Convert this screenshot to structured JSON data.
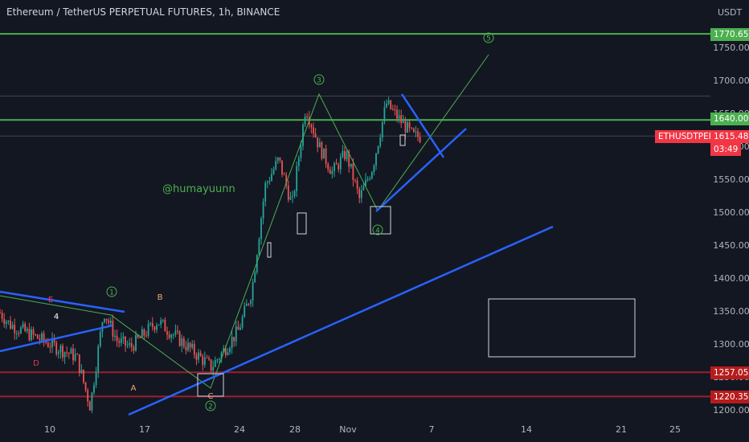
{
  "header": {
    "title": "Ethereum / TetherUS PERPETUAL FUTURES, 1h, BINANCE",
    "currency": "USDT"
  },
  "signature": "@humayuunn",
  "price_tags": {
    "symbol": "ETHUSDTPERP",
    "last_price": "1615.48",
    "countdown": "03:49",
    "level_top": "1770.65",
    "level_resistance": "1640.00",
    "level_support_1": "1257.05",
    "level_support_2": "1220.35"
  },
  "colors": {
    "background": "#131722",
    "candle_up": "#26a69a",
    "candle_down": "#ef5350",
    "trendline": "#2962ff",
    "green_level": "#4caf50",
    "red_level": "#b71c1c",
    "price_tag": "#f23645",
    "wave_label": "#4caf50",
    "abc_label": "#f5a86b",
    "de_label": "#f23645"
  },
  "chart_data": {
    "type": "candlestick",
    "y_axis": {
      "min": 1200,
      "max": 1800,
      "ticks": [
        1200,
        1250,
        1300,
        1350,
        1400,
        1450,
        1500,
        1550,
        1600,
        1650,
        1700,
        1750
      ]
    },
    "x_axis": {
      "tick_labels": [
        "10",
        "17",
        "24",
        "28",
        "Nov",
        "7",
        "14",
        "21",
        "25"
      ]
    },
    "price_path": [
      {
        "date": "Oct 5",
        "price": 1380
      },
      {
        "date": "Oct 7",
        "price": 1330
      },
      {
        "date": "Oct 9",
        "price": 1310
      },
      {
        "date": "Oct 12",
        "price": 1280
      },
      {
        "date": "Oct 13",
        "price": 1205
      },
      {
        "date": "Oct 14",
        "price": 1350
      },
      {
        "date": "Oct 15",
        "price": 1305
      },
      {
        "date": "Oct 16",
        "price": 1295
      },
      {
        "date": "Oct 18",
        "price": 1335
      },
      {
        "date": "Oct 20",
        "price": 1300
      },
      {
        "date": "Oct 22",
        "price": 1265
      },
      {
        "date": "Oct 24",
        "price": 1320
      },
      {
        "date": "Oct 25",
        "price": 1380
      },
      {
        "date": "Oct 26",
        "price": 1540
      },
      {
        "date": "Oct 27",
        "price": 1580
      },
      {
        "date": "Oct 28",
        "price": 1510
      },
      {
        "date": "Oct 29",
        "price": 1660
      },
      {
        "date": "Oct 30",
        "price": 1600
      },
      {
        "date": "Oct 31",
        "price": 1560
      },
      {
        "date": "Nov 1",
        "price": 1590
      },
      {
        "date": "Nov 2",
        "price": 1520
      },
      {
        "date": "Nov 3",
        "price": 1570
      },
      {
        "date": "Nov 4",
        "price": 1665
      },
      {
        "date": "Nov 5",
        "price": 1640
      },
      {
        "date": "Nov 6",
        "price": 1615
      }
    ],
    "horizontal_levels": [
      {
        "price": 1770.65,
        "color": "green"
      },
      {
        "price": 1676,
        "color": "gray"
      },
      {
        "price": 1640.0,
        "color": "green"
      },
      {
        "price": 1615.48,
        "color": "gray"
      },
      {
        "price": 1257.05,
        "color": "red"
      },
      {
        "price": 1220.35,
        "color": "red"
      }
    ],
    "wave_labels": [
      "1",
      "2",
      "3",
      "4",
      "5"
    ],
    "correction_labels": [
      "A",
      "B",
      "C",
      "D",
      "E"
    ],
    "small_label": "4"
  }
}
